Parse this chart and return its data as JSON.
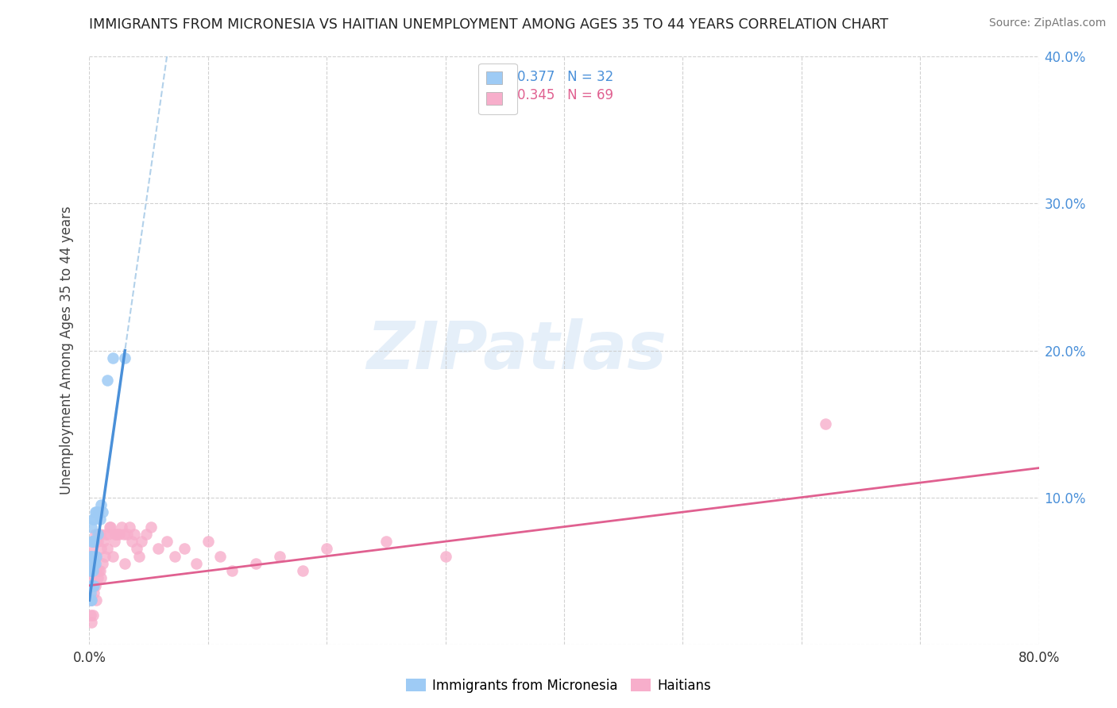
{
  "title": "IMMIGRANTS FROM MICRONESIA VS HAITIAN UNEMPLOYMENT AMONG AGES 35 TO 44 YEARS CORRELATION CHART",
  "source": "Source: ZipAtlas.com",
  "ylabel": "Unemployment Among Ages 35 to 44 years",
  "xlim": [
    0.0,
    0.8
  ],
  "ylim": [
    0.0,
    0.4
  ],
  "x_tick_positions": [
    0.0,
    0.1,
    0.2,
    0.3,
    0.4,
    0.5,
    0.6,
    0.7,
    0.8
  ],
  "y_tick_positions": [
    0.0,
    0.1,
    0.2,
    0.3,
    0.4
  ],
  "y_right_labels": [
    "",
    "10.0%",
    "20.0%",
    "30.0%",
    "40.0%"
  ],
  "legend_r1": "0.377",
  "legend_n1": "32",
  "legend_r2": "0.345",
  "legend_n2": "69",
  "legend_label1": "Immigrants from Micronesia",
  "legend_label2": "Haitians",
  "micronesia_color": "#9ecbf5",
  "haitian_color": "#f7aecb",
  "micronesia_line_color": "#4a90d9",
  "haitian_line_color": "#e06090",
  "dashed_line_color": "#aacce8",
  "background_color": "#ffffff",
  "watermark": "ZIPatlas",
  "watermark_color": "#d0dff0",
  "rn_text_color": "#4a90d9",
  "rn2_text_color": "#e06090",
  "mic_x": [
    0.001,
    0.001,
    0.001,
    0.001,
    0.001,
    0.002,
    0.002,
    0.002,
    0.002,
    0.002,
    0.002,
    0.003,
    0.003,
    0.003,
    0.003,
    0.003,
    0.004,
    0.004,
    0.004,
    0.004,
    0.005,
    0.005,
    0.006,
    0.006,
    0.007,
    0.008,
    0.009,
    0.01,
    0.011,
    0.015,
    0.02,
    0.03
  ],
  "mic_y": [
    0.03,
    0.035,
    0.04,
    0.05,
    0.06,
    0.03,
    0.04,
    0.05,
    0.06,
    0.07,
    0.08,
    0.04,
    0.05,
    0.06,
    0.07,
    0.085,
    0.04,
    0.055,
    0.07,
    0.085,
    0.055,
    0.09,
    0.06,
    0.09,
    0.075,
    0.09,
    0.085,
    0.095,
    0.09,
    0.18,
    0.195,
    0.195
  ],
  "hai_x": [
    0.001,
    0.001,
    0.001,
    0.001,
    0.002,
    0.002,
    0.002,
    0.002,
    0.003,
    0.003,
    0.003,
    0.003,
    0.004,
    0.004,
    0.004,
    0.005,
    0.005,
    0.005,
    0.006,
    0.006,
    0.006,
    0.007,
    0.007,
    0.008,
    0.008,
    0.009,
    0.009,
    0.01,
    0.01,
    0.011,
    0.012,
    0.013,
    0.014,
    0.015,
    0.016,
    0.017,
    0.018,
    0.02,
    0.021,
    0.022,
    0.023,
    0.025,
    0.027,
    0.029,
    0.03,
    0.032,
    0.034,
    0.036,
    0.038,
    0.04,
    0.042,
    0.044,
    0.048,
    0.052,
    0.058,
    0.065,
    0.072,
    0.08,
    0.09,
    0.1,
    0.11,
    0.12,
    0.14,
    0.16,
    0.18,
    0.2,
    0.25,
    0.62,
    0.3
  ],
  "hai_y": [
    0.02,
    0.03,
    0.045,
    0.06,
    0.015,
    0.03,
    0.05,
    0.065,
    0.02,
    0.04,
    0.055,
    0.07,
    0.035,
    0.055,
    0.07,
    0.04,
    0.06,
    0.075,
    0.03,
    0.05,
    0.07,
    0.045,
    0.07,
    0.05,
    0.075,
    0.05,
    0.075,
    0.045,
    0.065,
    0.055,
    0.07,
    0.06,
    0.075,
    0.065,
    0.075,
    0.08,
    0.08,
    0.06,
    0.07,
    0.075,
    0.075,
    0.075,
    0.08,
    0.075,
    0.055,
    0.075,
    0.08,
    0.07,
    0.075,
    0.065,
    0.06,
    0.07,
    0.075,
    0.08,
    0.065,
    0.07,
    0.06,
    0.065,
    0.055,
    0.07,
    0.06,
    0.05,
    0.055,
    0.06,
    0.05,
    0.065,
    0.07,
    0.15,
    0.06
  ],
  "mic_line_x0": 0.0,
  "mic_line_y0": 0.03,
  "mic_line_x1": 0.03,
  "mic_line_y1": 0.2,
  "hai_line_x0": 0.0,
  "hai_line_y0": 0.04,
  "hai_line_x1": 0.8,
  "hai_line_y1": 0.12
}
